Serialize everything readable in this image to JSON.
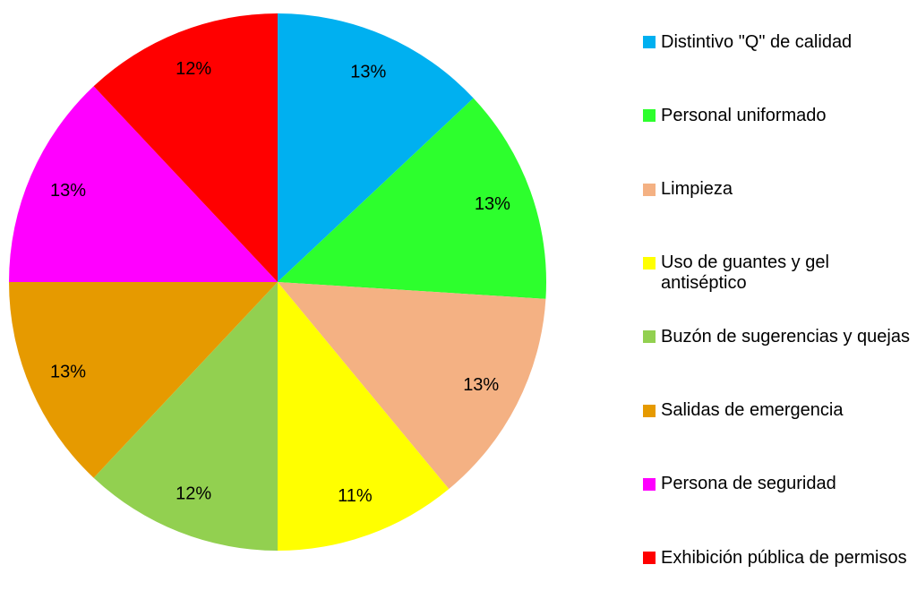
{
  "chart_data": {
    "type": "pie",
    "categories": [
      "Distintivo \"Q\" de calidad",
      "Personal uniformado",
      "Limpieza",
      "Uso de guantes y gel antiséptico",
      "Buzón de sugerencias y quejas",
      "Salidas de emergencia",
      "Persona de seguridad",
      "Exhibición pública de permisos"
    ],
    "values": [
      13,
      13,
      13,
      11,
      12,
      13,
      13,
      12
    ],
    "value_labels": [
      "13%",
      "13%",
      "13%",
      "11%",
      "12%",
      "13%",
      "13%",
      "12%"
    ],
    "colors": [
      "#00b0f0",
      "#2dff2d",
      "#f4b183",
      "#ffff00",
      "#92d050",
      "#e69a00",
      "#ff00ff",
      "#ff0000"
    ],
    "legend": "right"
  }
}
